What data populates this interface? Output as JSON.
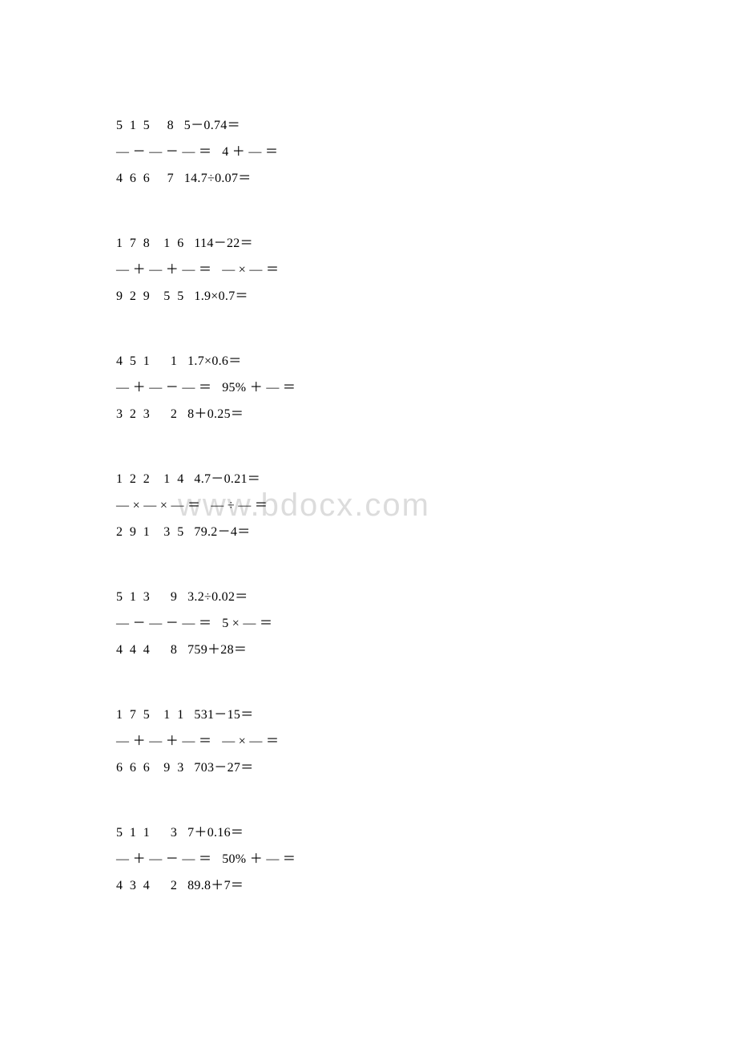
{
  "watermark": "www.bdocx.com",
  "blocks": [
    {
      "lines": [
        "5  1  5     8   5－0.74＝",
        "— － — － — ＝   4 ＋ — ＝",
        "4  6  6     7   14.7÷0.07＝"
      ]
    },
    {
      "lines": [
        "1  7  8    1  6   114－22＝",
        "— ＋ — ＋ — ＝   — × — ＝",
        "9  2  9    5  5   1.9×0.7＝"
      ]
    },
    {
      "lines": [
        "4  5  1      1   1.7×0.6＝",
        "— ＋ — － — ＝   95% ＋ — ＝",
        "3  2  3      2   8＋0.25＝"
      ]
    },
    {
      "lines": [
        "1  2  2    1  4   4.7－0.21＝",
        "— × — × — ＝   — ÷ — ＝",
        "2  9  1    3  5   79.2－4＝"
      ]
    },
    {
      "lines": [
        "5  1  3      9   3.2÷0.02＝",
        "— － — － — ＝   5 × — ＝",
        "4  4  4      8   759＋28＝"
      ]
    },
    {
      "lines": [
        "1  7  5    1  1   531－15＝",
        "— ＋ — ＋ — ＝   — × — ＝",
        "6  6  6    9  3   703－27＝"
      ]
    },
    {
      "lines": [
        "5  1  1      3   7＋0.16＝",
        "— ＋ — － — ＝   50% ＋ — ＝",
        "4  3  4      2   89.8＋7＝"
      ]
    }
  ]
}
